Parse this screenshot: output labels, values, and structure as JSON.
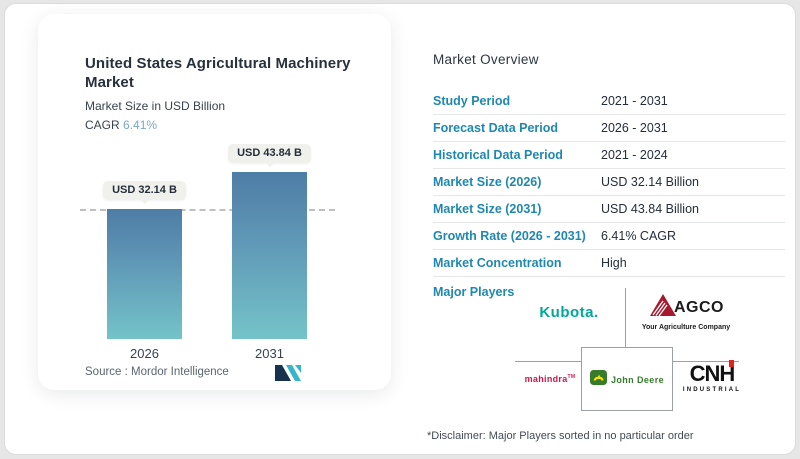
{
  "chart_panel": {
    "title": "United States Agricultural Machinery Market",
    "subtitle": "Market Size in USD Billion",
    "cagr_label": "CAGR",
    "cagr_value": "6.41%",
    "source_label": "Source :",
    "source_value": "Mordor Intelligence"
  },
  "chart_data": {
    "type": "bar",
    "categories": [
      "2026",
      "2031"
    ],
    "values": [
      32.14,
      43.84
    ],
    "value_labels": [
      "USD 32.14 B",
      "USD 43.84 B"
    ],
    "title": "United States Agricultural Machinery Market",
    "ylabel": "Market Size in USD Billion",
    "ylim": [
      0,
      53
    ],
    "grid": false,
    "legend": false,
    "reference_line_value": 32.14,
    "bar_gradient_top": "#4e7da5",
    "bar_gradient_bottom": "#74c3c9"
  },
  "overview": {
    "title": "Market Overview",
    "rows": [
      {
        "label": "Study Period",
        "value": "2021 - 2031"
      },
      {
        "label": "Forecast Data Period",
        "value": "2026 - 2031"
      },
      {
        "label": "Historical Data Period",
        "value": "2021 - 2024"
      },
      {
        "label": "Market Size (2026)",
        "value": "USD 32.14 Billion"
      },
      {
        "label": "Market Size (2031)",
        "value": "USD 43.84 Billion"
      },
      {
        "label": "Growth Rate (2026 - 2031)",
        "value": "6.41% CAGR"
      },
      {
        "label": "Market Concentration",
        "value": "High"
      }
    ],
    "major_players_label": "Major Players",
    "major_players": [
      "Kubota Corporation",
      "AGCO Corporation",
      "Mahindra & Mahindra",
      "John Deere",
      "CNH Industrial"
    ],
    "disclaimer": "*Disclaimer: Major Players sorted in no particular order",
    "label_color": "#1f88b0"
  },
  "logos": {
    "kubota": {
      "text": "Kubota.",
      "color": "#00a79b"
    },
    "agco": {
      "text": "AGCO",
      "tagline": "Your Agriculture Company",
      "red": "#a6192e"
    },
    "mahindra": {
      "text": "mahindra",
      "tm": "TM",
      "color": "#d6144a"
    },
    "john_deere": {
      "text": "John Deere",
      "green": "#367c2b",
      "yellow": "#ffde00"
    },
    "cnh": {
      "text": "CNH",
      "sub": "INDUSTRIAL",
      "red": "#e32119"
    },
    "mordor_intelligence": {
      "navy": "#16324f",
      "teal": "#35b6c9"
    }
  }
}
